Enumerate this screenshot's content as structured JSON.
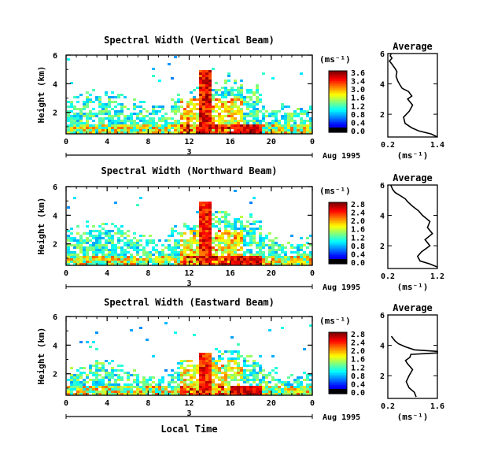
{
  "x_axis_label": "Local Time",
  "panel_order": [
    "vertical",
    "northward",
    "eastward"
  ],
  "panels": {
    "vertical": {
      "title": "Spectral Width (Vertical Beam)",
      "ylabel": "Height (km)",
      "y_ticks": [
        "2",
        "4",
        "6"
      ],
      "x_ticks": [
        "0",
        "4",
        "8",
        "12",
        "16",
        "20",
        "0"
      ],
      "date_marker": "3",
      "date_label": "Aug 1995",
      "colorbar_unit": "(ms⁻¹)",
      "colorbar_ticks": [
        "3.6",
        "3.4",
        "3.0",
        "1.6",
        "1.2",
        "0.8",
        "0.4",
        "0.0"
      ],
      "colorbar_max": 3.6,
      "burst_intensity": 1.0,
      "average": {
        "title": "Average",
        "xlabel": "(ms⁻¹)",
        "x_ticks": [
          "0.2",
          "1.4"
        ],
        "xlim": [
          0.2,
          1.4
        ],
        "y_ticks": [
          "2",
          "4",
          "6"
        ],
        "ylim": [
          0.5,
          6.0
        ]
      }
    },
    "northward": {
      "title": "Spectral Width (Northward Beam)",
      "ylabel": "Height (km)",
      "y_ticks": [
        "2",
        "4",
        "6"
      ],
      "x_ticks": [
        "0",
        "4",
        "8",
        "12",
        "16",
        "20",
        "0"
      ],
      "date_marker": "3",
      "date_label": "Aug 1995",
      "colorbar_unit": "(ms⁻¹)",
      "colorbar_ticks": [
        "2.8",
        "2.4",
        "2.0",
        "1.6",
        "1.2",
        "0.8",
        "0.4",
        "0.0"
      ],
      "colorbar_max": 2.8,
      "burst_intensity": 0.9,
      "average": {
        "title": "Average",
        "xlabel": "(ms⁻¹)",
        "x_ticks": [
          "0.2",
          "1.2"
        ],
        "xlim": [
          0.2,
          1.2
        ],
        "y_ticks": [
          "2",
          "4",
          "6"
        ],
        "ylim": [
          0.5,
          6.0
        ]
      }
    },
    "eastward": {
      "title": "Spectral Width (Eastward Beam)",
      "ylabel": "Height (km)",
      "y_ticks": [
        "2",
        "4",
        "6"
      ],
      "x_ticks": [
        "0",
        "4",
        "8",
        "12",
        "16",
        "20",
        "0"
      ],
      "date_marker": "3",
      "date_label": "Aug 1995",
      "colorbar_unit": "(ms⁻¹)",
      "colorbar_ticks": [
        "2.8",
        "2.4",
        "2.0",
        "1.6",
        "1.2",
        "0.8",
        "0.4",
        "0.0"
      ],
      "colorbar_max": 2.8,
      "burst_intensity": 0.8,
      "average": {
        "title": "Average",
        "xlabel": "(ms⁻¹)",
        "x_ticks": [
          "0.2",
          "1.6"
        ],
        "xlim": [
          0.2,
          1.6
        ],
        "y_ticks": [
          "2",
          "4",
          "6"
        ],
        "ylim": [
          0.5,
          6.0
        ]
      }
    }
  },
  "chart_data": [
    {
      "type": "heatmap",
      "title": "Spectral Width (Vertical Beam)",
      "xlabel": "Local Time",
      "ylabel": "Height (km)",
      "xlim": [
        0,
        24
      ],
      "ylim": [
        0.5,
        6.0
      ],
      "colorbar_range": [
        0.0,
        3.6
      ],
      "colorbar_unit": "(ms⁻¹)",
      "note_features": "dense echoes below ~3 km all day; strong maximum (red) near 13-14 LT reaching ~5 km"
    },
    {
      "type": "heatmap",
      "title": "Spectral Width (Northward Beam)",
      "xlabel": "Local Time",
      "ylabel": "Height (km)",
      "xlim": [
        0,
        24
      ],
      "ylim": [
        0.5,
        6.0
      ],
      "colorbar_range": [
        0.0,
        2.8
      ],
      "colorbar_unit": "(ms⁻¹)"
    },
    {
      "type": "heatmap",
      "title": "Spectral Width (Eastward Beam)",
      "xlabel": "Local Time",
      "ylabel": "Height (km)",
      "xlim": [
        0,
        24
      ],
      "ylim": [
        0.5,
        6.0
      ],
      "colorbar_range": [
        0.0,
        2.8
      ],
      "colorbar_unit": "(ms⁻¹)"
    },
    {
      "type": "line",
      "title": "Average",
      "panel": "Vertical Beam",
      "xlabel": "(ms⁻¹)",
      "xlim": [
        0.2,
        1.4
      ],
      "ylim": [
        0.5,
        6.0
      ],
      "x": [
        1.4,
        1.25,
        0.95,
        0.78,
        0.62,
        0.58,
        0.72,
        0.8,
        0.68,
        0.78,
        0.7,
        0.55,
        0.5,
        0.44,
        0.4,
        0.42,
        0.38,
        0.3,
        0.24,
        0.3,
        0.26,
        0.28
      ],
      "y": [
        0.5,
        0.7,
        0.9,
        1.1,
        1.4,
        1.8,
        2.2,
        2.6,
        3.0,
        3.2,
        3.5,
        3.7,
        3.9,
        4.2,
        4.5,
        4.8,
        5.0,
        5.3,
        5.5,
        5.7,
        5.85,
        6.0
      ]
    },
    {
      "type": "line",
      "title": "Average",
      "panel": "Northward Beam",
      "xlabel": "(ms⁻¹)",
      "xlim": [
        0.2,
        1.2
      ],
      "ylim": [
        0.5,
        6.0
      ],
      "x": [
        1.2,
        1.05,
        0.85,
        0.8,
        0.88,
        1.05,
        0.95,
        1.1,
        1.0,
        1.05,
        0.9,
        0.82,
        0.7,
        0.6,
        0.55,
        0.45,
        0.35,
        0.3,
        0.28,
        0.26
      ],
      "y": [
        0.6,
        0.8,
        1.0,
        1.3,
        1.6,
        2.0,
        2.4,
        2.8,
        3.2,
        3.6,
        4.0,
        4.3,
        4.6,
        4.9,
        5.1,
        5.3,
        5.5,
        5.7,
        5.85,
        6.0
      ]
    },
    {
      "type": "line",
      "title": "Average",
      "panel": "Eastward Beam",
      "xlabel": "(ms⁻¹)",
      "xlim": [
        0.2,
        1.6
      ],
      "ylim": [
        0.5,
        6.0
      ],
      "x": [
        1.0,
        0.95,
        0.8,
        0.72,
        0.8,
        0.9,
        0.75,
        0.7,
        0.82,
        0.85,
        1.6,
        1.6,
        0.95,
        0.7,
        0.5,
        0.4,
        0.3
      ],
      "y": [
        0.6,
        0.9,
        1.2,
        1.6,
        2.0,
        2.4,
        2.8,
        3.0,
        3.2,
        3.4,
        3.5,
        3.6,
        3.7,
        3.9,
        4.1,
        4.3,
        4.6
      ]
    }
  ]
}
